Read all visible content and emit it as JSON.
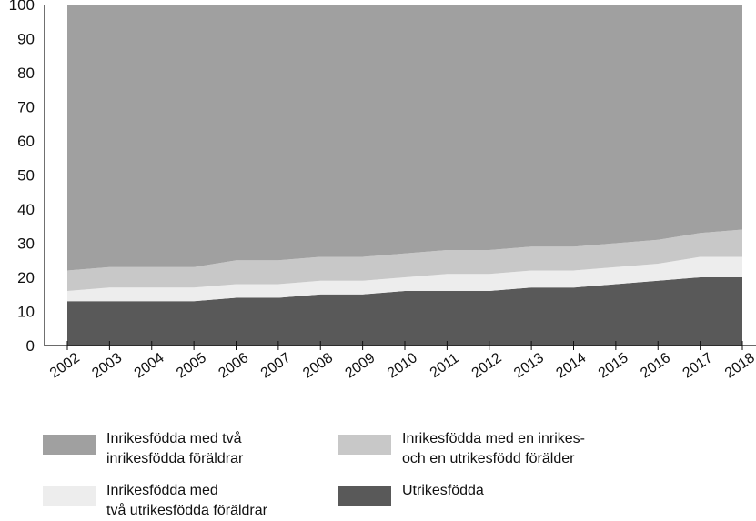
{
  "chart_data": {
    "type": "area",
    "stacked": true,
    "title": "",
    "xlabel": "",
    "ylabel": "",
    "x": [
      "2002",
      "2003",
      "2004",
      "2005",
      "2006",
      "2007",
      "2008",
      "2009",
      "2010",
      "2011",
      "2012",
      "2013",
      "2014",
      "2015",
      "2016",
      "2017",
      "2018"
    ],
    "ylim": [
      0,
      100
    ],
    "yticks": [
      0,
      10,
      20,
      30,
      40,
      50,
      60,
      70,
      80,
      90,
      100
    ],
    "grid": false,
    "legend_position": "bottom",
    "series": [
      {
        "key": "utrikes",
        "name": "Utrikesfödda",
        "color": "#595959",
        "values": [
          13,
          13,
          13,
          13,
          14,
          14,
          15,
          15,
          16,
          16,
          16,
          17,
          17,
          18,
          19,
          20,
          20
        ]
      },
      {
        "key": "tva_utrikes",
        "name": "Inrikesfödda med två utrikesfödda föräldrar",
        "color": "#ededed",
        "values": [
          3,
          4,
          4,
          4,
          4,
          4,
          4,
          4,
          4,
          5,
          5,
          5,
          5,
          5,
          5,
          6,
          6
        ]
      },
      {
        "key": "en_utrikes",
        "name": "Inrikesfödda med en inrikes- och en utrikesfödd förälder",
        "color": "#c8c8c8",
        "values": [
          6,
          6,
          6,
          6,
          7,
          7,
          7,
          7,
          7,
          7,
          7,
          7,
          7,
          7,
          7,
          7,
          8
        ]
      },
      {
        "key": "tva_inrikes",
        "name": "Inrikesfödda med två inrikesfödda föräldrar",
        "color": "#a0a0a0",
        "values": [
          78,
          77,
          77,
          77,
          75,
          75,
          74,
          74,
          73,
          72,
          72,
          71,
          71,
          70,
          69,
          67,
          66
        ]
      }
    ]
  },
  "legend": {
    "item1": {
      "line1": "Inrikesfödda med två",
      "line2": "inrikesfödda föräldrar",
      "color": "#a0a0a0"
    },
    "item2": {
      "line1": "Inrikesfödda med en inrikes-",
      "line2": "och en utrikesfödd förälder",
      "color": "#c8c8c8"
    },
    "item3": {
      "line1": "Inrikesfödda med",
      "line2": "två utrikesfödda föräldrar",
      "color": "#ededed"
    },
    "item4": {
      "line1": "Utrikesfödda",
      "line2": "",
      "color": "#595959"
    }
  }
}
